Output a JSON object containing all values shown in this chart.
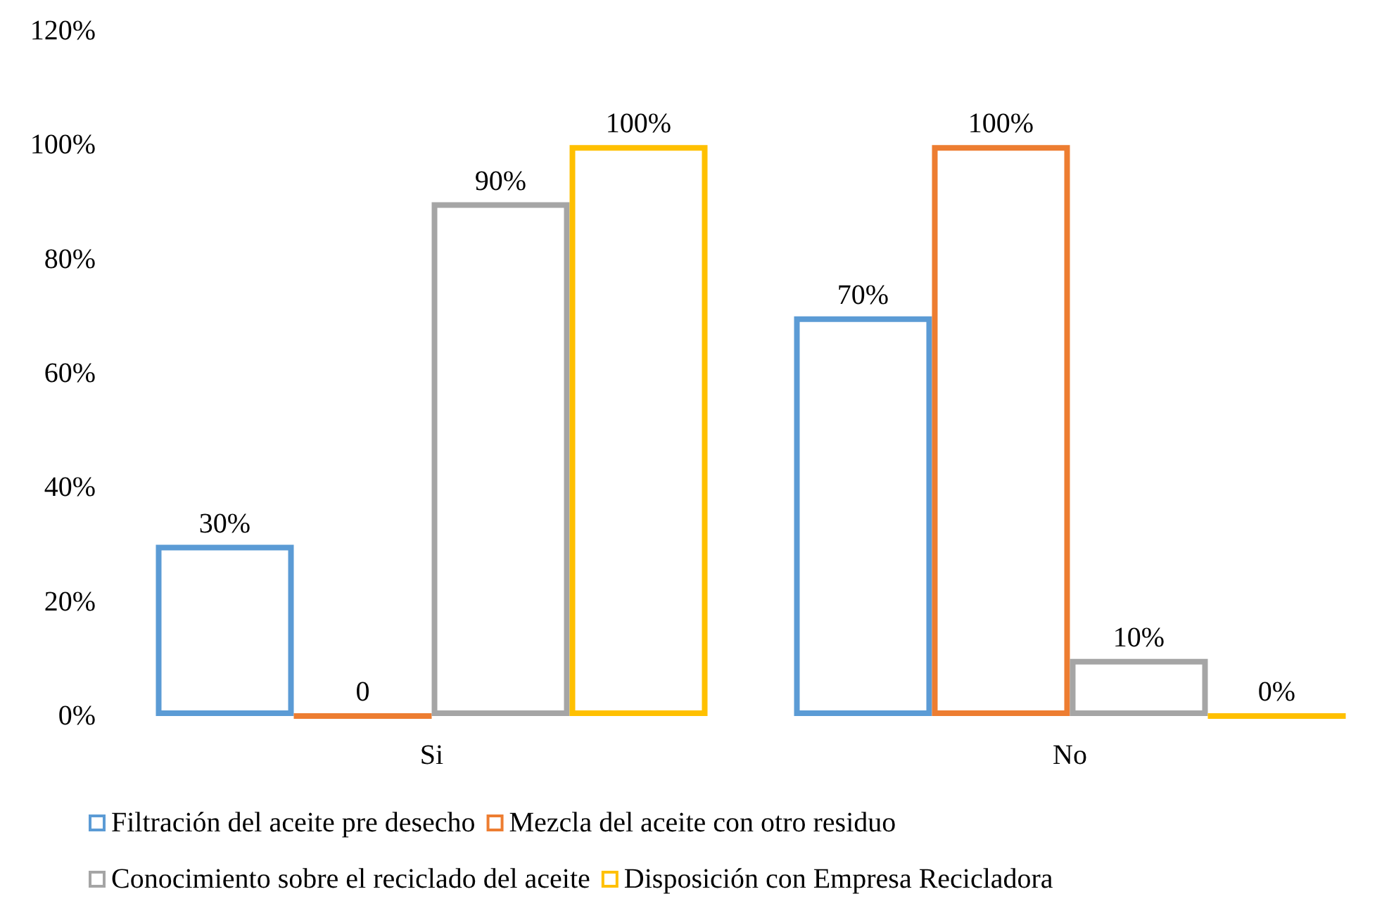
{
  "chart_data": {
    "type": "bar",
    "categories": [
      "Si",
      "No"
    ],
    "series": [
      {
        "name": "Filtración del aceite pre desecho",
        "color": "#5b9bd5",
        "values": [
          30,
          70
        ],
        "value_labels": [
          "30%",
          "70%"
        ]
      },
      {
        "name": "Mezcla del aceite con otro residuo",
        "color": "#ed7d31",
        "values": [
          0,
          100
        ],
        "value_labels": [
          "0",
          "100%"
        ]
      },
      {
        "name": "Conocimiento sobre el reciclado del aceite",
        "color": "#a5a5a5",
        "values": [
          90,
          10
        ],
        "value_labels": [
          "90%",
          "10%"
        ]
      },
      {
        "name": "Disposición con Empresa Recicladora",
        "color": "#ffc000",
        "values": [
          100,
          0
        ],
        "value_labels": [
          "100%",
          "0%"
        ]
      }
    ],
    "ylim": [
      0,
      120
    ],
    "yticks": [
      {
        "value": 0,
        "label": "0%"
      },
      {
        "value": 20,
        "label": "20%"
      },
      {
        "value": 40,
        "label": "40%"
      },
      {
        "value": 60,
        "label": "60%"
      },
      {
        "value": 80,
        "label": "80%"
      },
      {
        "value": 100,
        "label": "100%"
      },
      {
        "value": 120,
        "label": "120%"
      }
    ],
    "grid": false,
    "legend": "bottom"
  }
}
